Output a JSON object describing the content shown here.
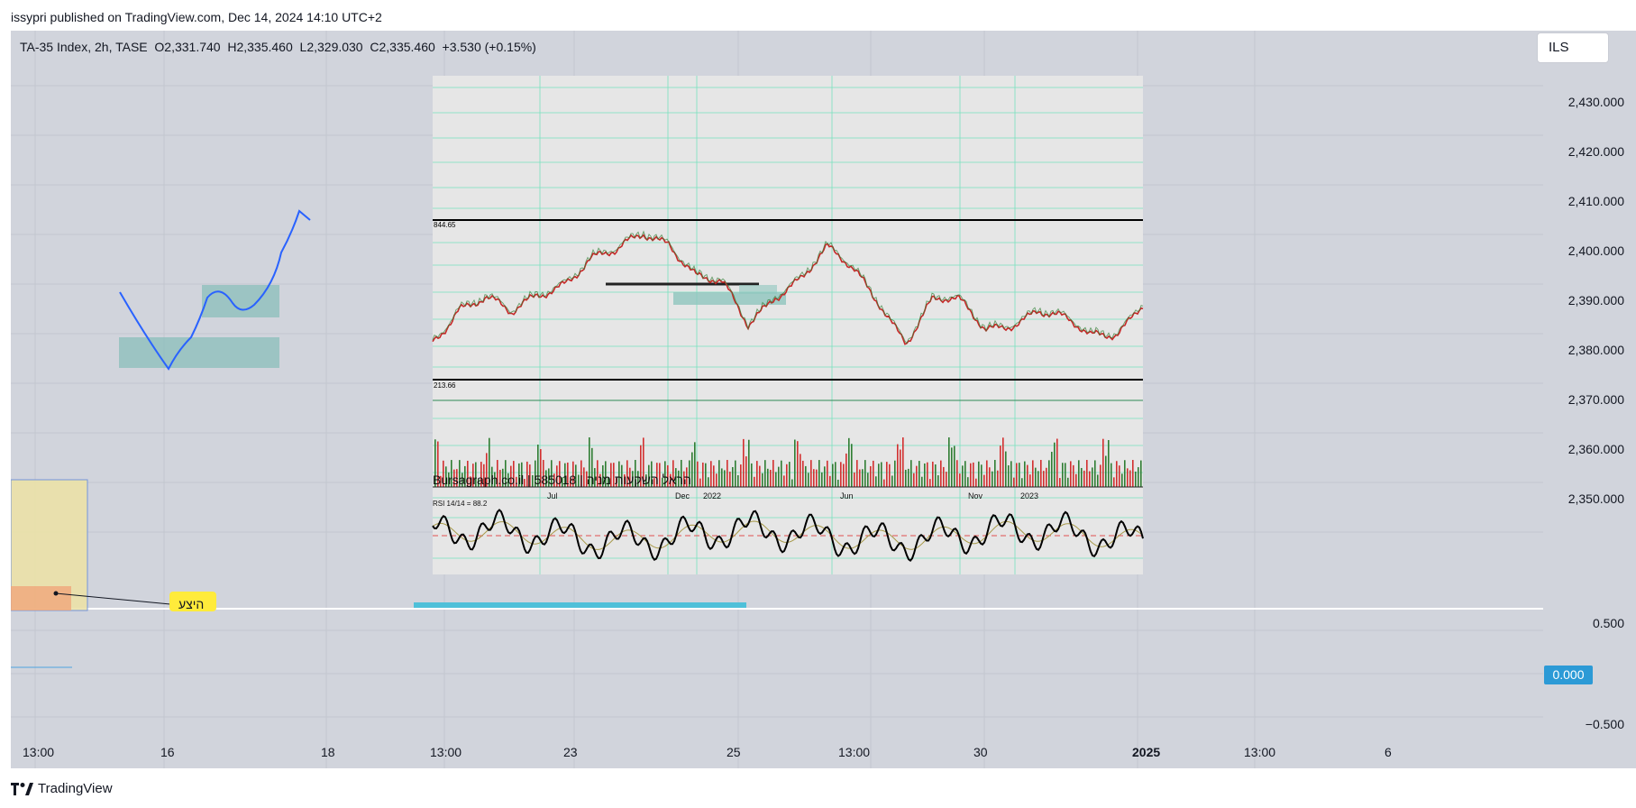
{
  "publisher": "issypri published on TradingView.com, Dec 14, 2024 14:10 UTC+2",
  "legend": "TA-35 Index, 2h, TASE  O2,331.740  H2,335.460  L2,329.030  C2,335.460  +3.530 (+0.15%)",
  "currency": "ILS",
  "price_axis": [
    "2,430.000",
    "2,420.000",
    "2,410.000",
    "2,400.000",
    "2,390.000",
    "2,380.000",
    "2,370.000",
    "2,360.000",
    "2,350.000"
  ],
  "osc_axis": [
    "0.500",
    "0.000",
    "−0.500"
  ],
  "time_axis": [
    "13:00",
    "16",
    "18",
    "13:00",
    "23",
    "25",
    "13:00",
    "30",
    "2025",
    "13:00",
    "6"
  ],
  "embedded_chart": {
    "top_level": "844.65",
    "bottom_level": "213.66",
    "watermark": "Bursagraph.co.il | 585018 | הראל השקעות מניה",
    "months": [
      "Jul",
      "Dec",
      "2022",
      "Jun",
      "Nov",
      "2023"
    ],
    "rsi_label": "RSI 14/14 = 88.2"
  },
  "note_label": "היצע",
  "brand": "TradingView"
}
